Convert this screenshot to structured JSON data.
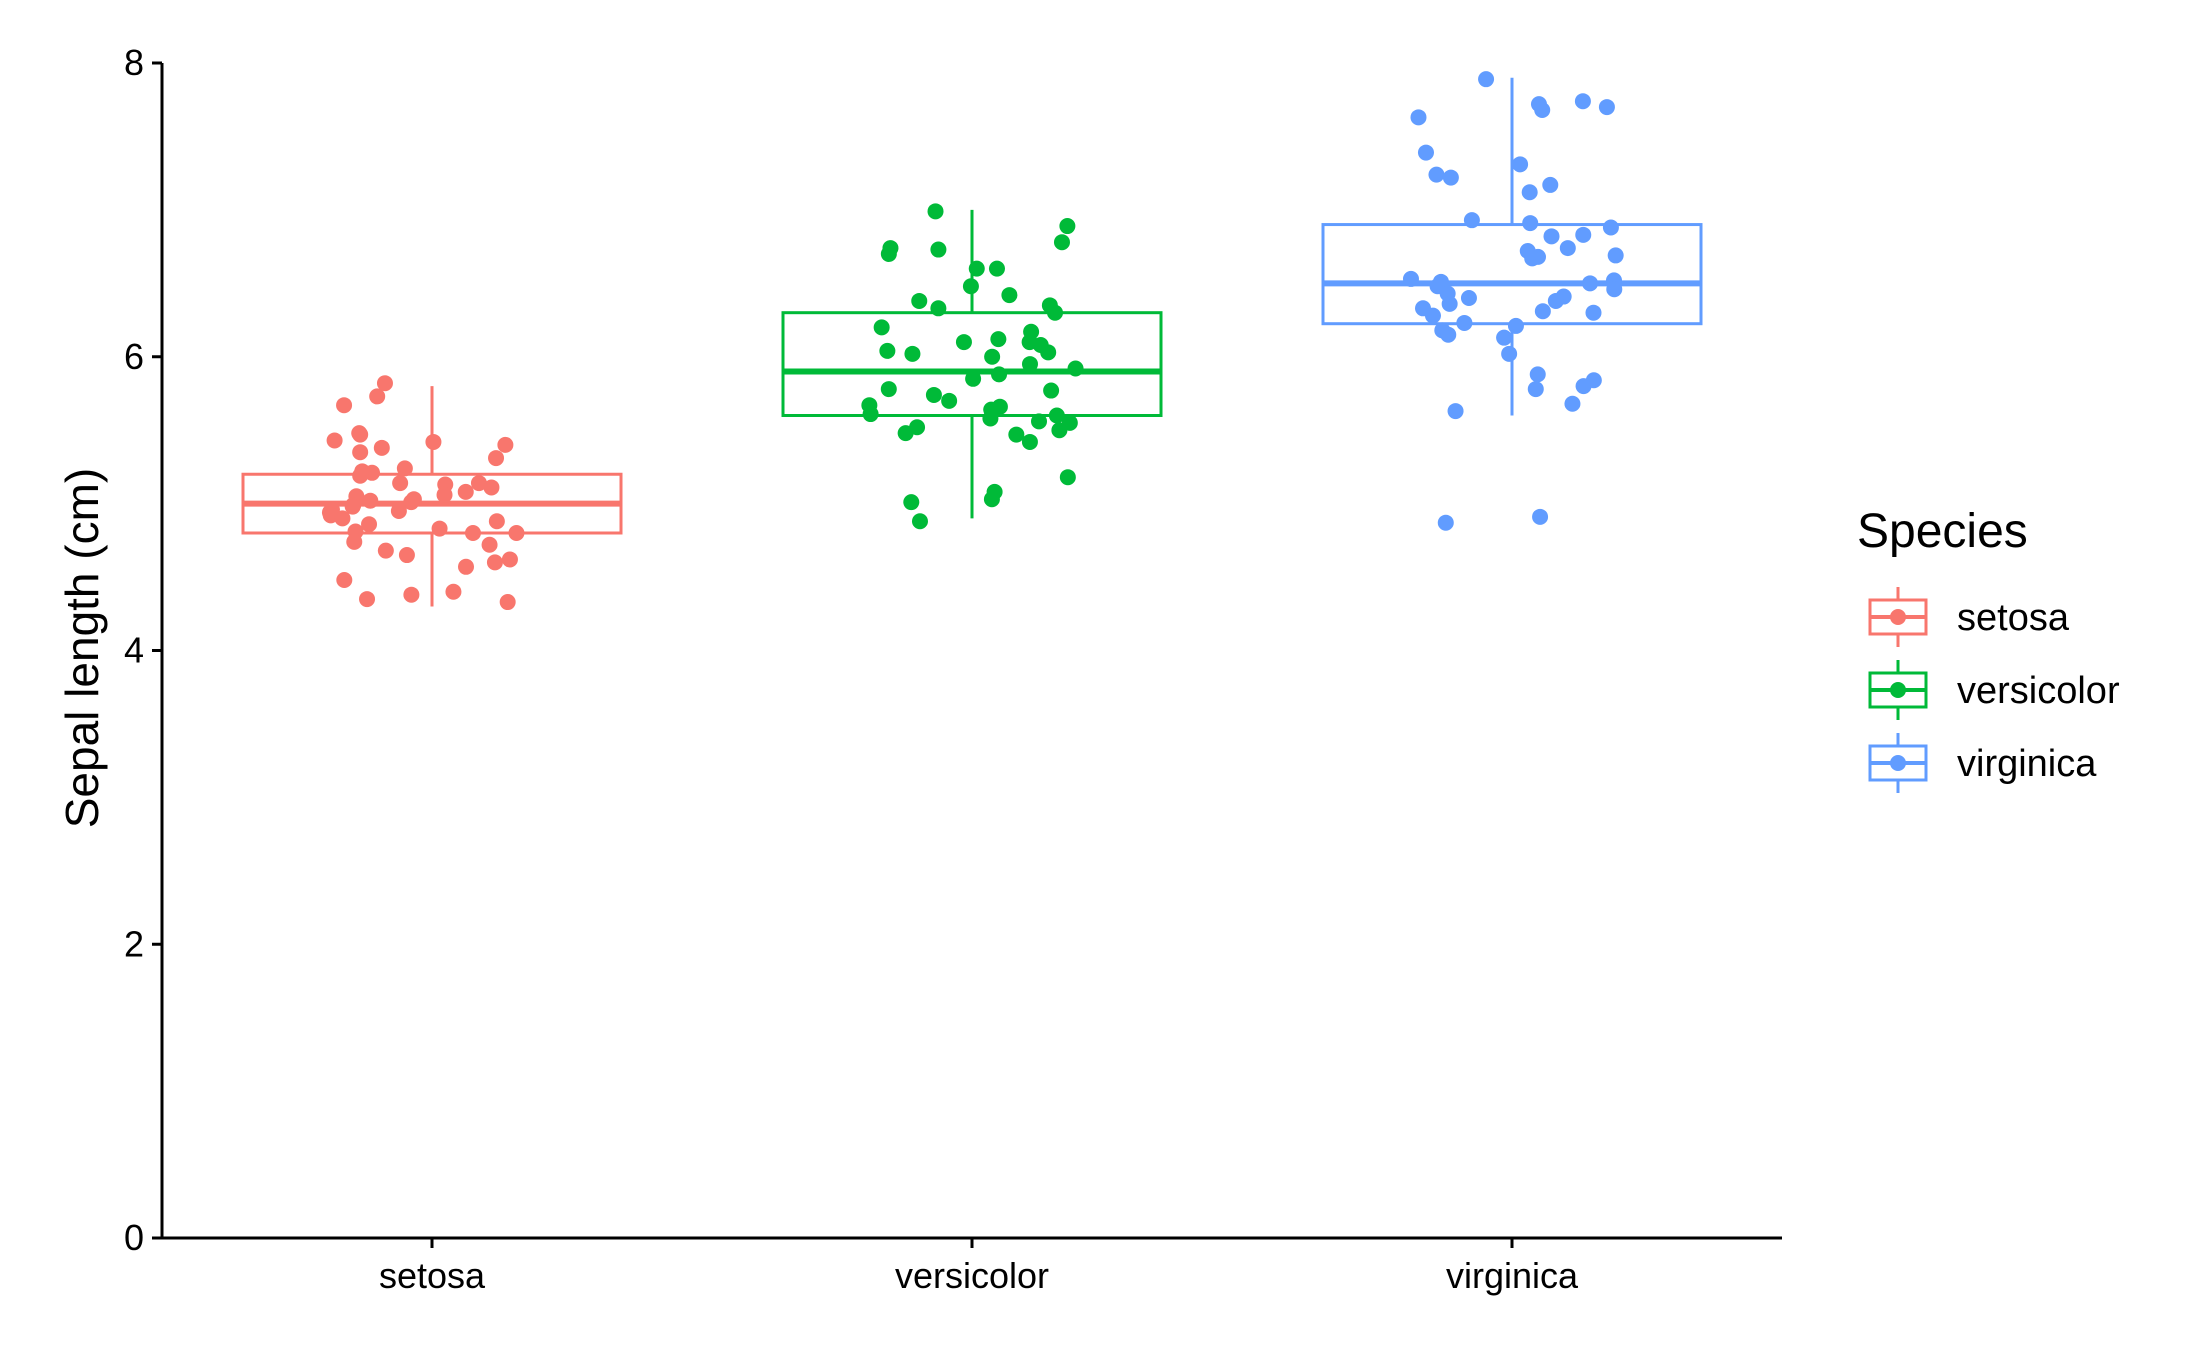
{
  "chart_data": {
    "type": "box",
    "title": "",
    "xlabel": "",
    "ylabel": "Sepal length (cm)",
    "ylim": [
      0,
      8
    ],
    "yticks": [
      0,
      2,
      4,
      6,
      8
    ],
    "grid": false,
    "legend_position": "right",
    "categories": [
      "setosa",
      "versicolor",
      "virginica"
    ],
    "legend": {
      "title": "Species",
      "items": [
        "setosa",
        "versicolor",
        "virginica"
      ]
    },
    "series": [
      {
        "name": "setosa",
        "color": "#F8766D",
        "box": {
          "min": 4.3,
          "q1": 4.8,
          "median": 5.0,
          "q3": 5.2,
          "max": 5.8
        },
        "points": [
          5.82,
          5.67,
          5.73,
          5.38,
          5.43,
          5.48,
          5.47,
          5.42,
          5.4,
          5.35,
          5.31,
          5.22,
          5.24,
          5.21,
          5.19,
          5.14,
          5.13,
          5.11,
          5.14,
          5.08,
          5.06,
          5.05,
          5.03,
          5.02,
          5.01,
          4.99,
          4.98,
          4.96,
          4.94,
          4.92,
          4.95,
          4.9,
          4.88,
          4.86,
          4.83,
          4.81,
          4.8,
          4.8,
          4.74,
          4.72,
          4.68,
          4.65,
          4.62,
          4.6,
          4.57,
          4.48,
          4.4,
          4.38,
          4.35,
          4.33
        ]
      },
      {
        "name": "versicolor",
        "color": "#00BA38",
        "box": {
          "min": 4.9,
          "q1": 5.6,
          "median": 5.9,
          "q3": 6.3,
          "max": 7.0
        },
        "points": [
          6.99,
          6.89,
          6.78,
          6.74,
          6.73,
          6.7,
          6.6,
          6.6,
          6.48,
          6.42,
          6.38,
          6.35,
          6.33,
          6.3,
          6.2,
          6.17,
          6.12,
          6.1,
          6.1,
          6.08,
          6.04,
          6.03,
          6.02,
          6.0,
          5.95,
          5.92,
          5.88,
          5.85,
          5.78,
          5.77,
          5.74,
          5.7,
          5.67,
          5.66,
          5.64,
          5.61,
          5.6,
          5.58,
          5.56,
          5.55,
          5.52,
          5.5,
          5.48,
          5.47,
          5.42,
          5.18,
          5.08,
          5.03,
          5.01,
          4.88
        ]
      },
      {
        "name": "virginica",
        "color": "#619CFF",
        "box": {
          "min": 5.6,
          "q1": 6.225,
          "median": 6.5,
          "q3": 6.9,
          "max": 7.9
        },
        "points": [
          7.89,
          7.74,
          7.72,
          7.7,
          7.68,
          7.63,
          7.39,
          7.31,
          7.24,
          7.22,
          7.17,
          7.12,
          6.93,
          6.91,
          6.88,
          6.83,
          6.82,
          6.74,
          6.72,
          6.69,
          6.68,
          6.67,
          6.53,
          6.52,
          6.51,
          6.5,
          6.48,
          6.46,
          6.43,
          6.41,
          6.4,
          6.38,
          6.36,
          6.33,
          6.31,
          6.3,
          6.28,
          6.23,
          6.21,
          6.18,
          6.15,
          6.13,
          6.02,
          5.88,
          5.84,
          5.8,
          5.78,
          5.68,
          5.63,
          4.91,
          4.87
        ]
      }
    ]
  }
}
